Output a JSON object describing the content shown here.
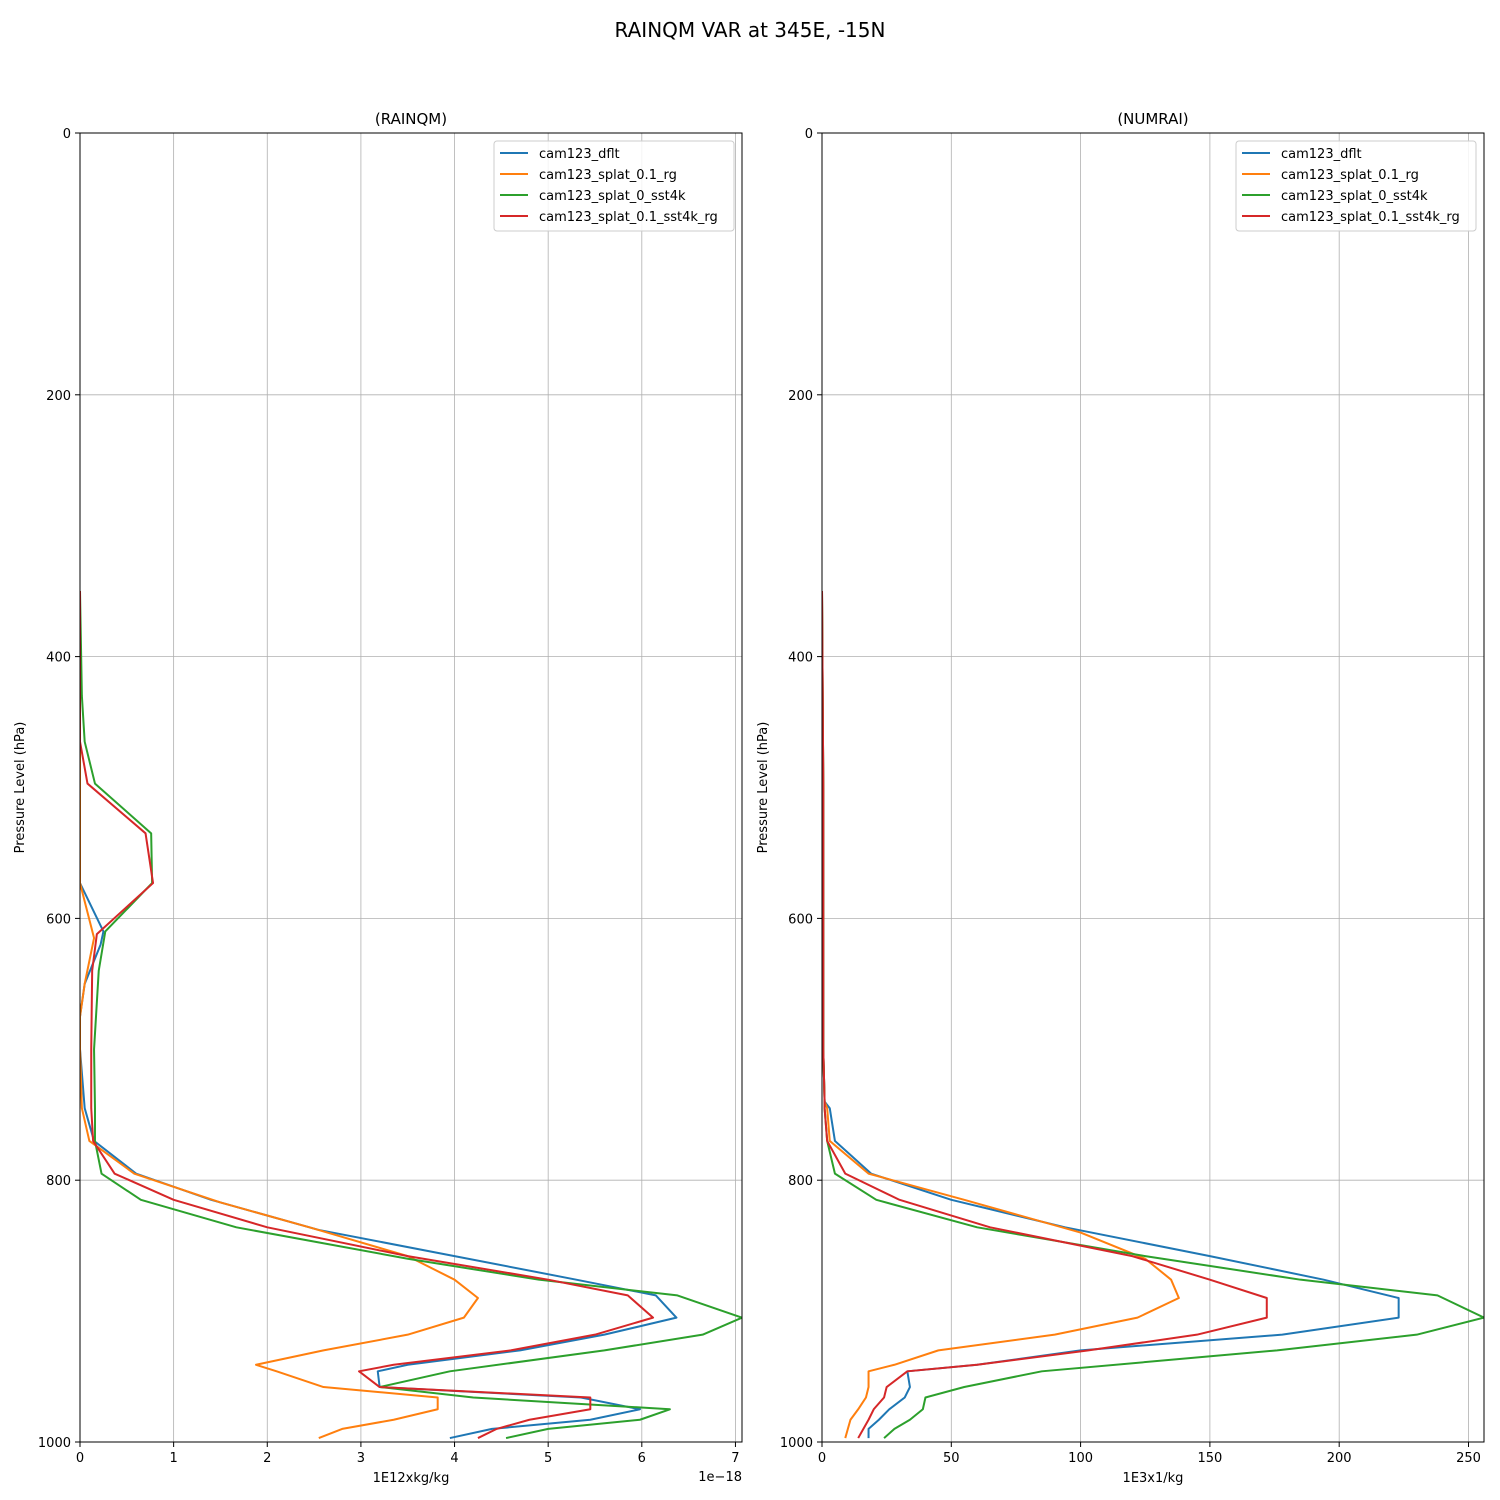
{
  "figure": {
    "suptitle": "RAINQM VAR at 345E, -15N"
  },
  "chart_data": [
    {
      "type": "line",
      "title": "(RAINQM)",
      "xlabel": "1E12xkg/kg",
      "ylabel": "Pressure Level (hPa)",
      "x_offset_text": "1e−18",
      "xlim": [
        0,
        7.07
      ],
      "ylim": [
        1000,
        0
      ],
      "xticks": [
        0,
        1,
        2,
        3,
        4,
        5,
        6,
        7
      ],
      "yticks": [
        0,
        200,
        400,
        600,
        800,
        1000
      ],
      "grid": true,
      "legend": "top-right",
      "series": [
        {
          "name": "cam123_dflt",
          "color": "#1f77b4",
          "points": [
            [
              0,
              350
            ],
            [
              0,
              535
            ],
            [
              0,
              573
            ],
            [
              0.25,
              610
            ],
            [
              0.22,
              620
            ],
            [
              0.05,
              650
            ],
            [
              0,
              675
            ],
            [
              0,
              700
            ],
            [
              0.05,
              745
            ],
            [
              0.15,
              770
            ],
            [
              0.6,
              795
            ],
            [
              1.4,
              815
            ],
            [
              2.55,
              838
            ],
            [
              4.0,
              858
            ],
            [
              5.3,
              876
            ],
            [
              6.15,
              888
            ],
            [
              6.37,
              905
            ],
            [
              5.6,
              918
            ],
            [
              4.7,
              930
            ],
            [
              3.5,
              941
            ],
            [
              3.18,
              946
            ],
            [
              3.2,
              958
            ],
            [
              5.35,
              966
            ],
            [
              5.98,
              975
            ],
            [
              5.45,
              983
            ],
            [
              4.4,
              990
            ],
            [
              3.95,
              997
            ]
          ]
        },
        {
          "name": "cam123_splat_0.1_rg",
          "color": "#ff7f0e",
          "points": [
            [
              0,
              350
            ],
            [
              0,
              535
            ],
            [
              0,
              573
            ],
            [
              0.15,
              615
            ],
            [
              0.05,
              650
            ],
            [
              0,
              675
            ],
            [
              0,
              700
            ],
            [
              0.02,
              745
            ],
            [
              0.1,
              770
            ],
            [
              0.58,
              795
            ],
            [
              1.5,
              817
            ],
            [
              2.45,
              836
            ],
            [
              3.5,
              858
            ],
            [
              4.0,
              876
            ],
            [
              4.25,
              890
            ],
            [
              4.1,
              905
            ],
            [
              3.5,
              918
            ],
            [
              2.6,
              930
            ],
            [
              1.88,
              941
            ],
            [
              2.1,
              946
            ],
            [
              2.6,
              958
            ],
            [
              3.82,
              966
            ],
            [
              3.82,
              975
            ],
            [
              3.35,
              983
            ],
            [
              2.8,
              990
            ],
            [
              2.55,
              997
            ]
          ]
        },
        {
          "name": "cam123_splat_0_sst4k",
          "color": "#2ca02c",
          "points": [
            [
              0,
              350
            ],
            [
              0.02,
              430
            ],
            [
              0.05,
              465
            ],
            [
              0.16,
              497
            ],
            [
              0.76,
              535
            ],
            [
              0.77,
              573
            ],
            [
              0.27,
              610
            ],
            [
              0.2,
              640
            ],
            [
              0.15,
              700
            ],
            [
              0.16,
              745
            ],
            [
              0.16,
              770
            ],
            [
              0.23,
              795
            ],
            [
              0.65,
              815
            ],
            [
              1.67,
              836
            ],
            [
              3.5,
              860
            ],
            [
              4.9,
              876
            ],
            [
              6.38,
              888
            ],
            [
              7.07,
              905
            ],
            [
              6.65,
              918
            ],
            [
              5.6,
              930
            ],
            [
              3.95,
              946
            ],
            [
              3.2,
              958
            ],
            [
              4.2,
              966
            ],
            [
              6.3,
              975
            ],
            [
              5.98,
              983
            ],
            [
              5.0,
              990
            ],
            [
              4.55,
              997
            ]
          ]
        },
        {
          "name": "cam123_splat_0.1_sst4k_rg",
          "color": "#d62728",
          "points": [
            [
              0,
              350
            ],
            [
              0,
              430
            ],
            [
              0,
              465
            ],
            [
              0.08,
              497
            ],
            [
              0.7,
              535
            ],
            [
              0.78,
              573
            ],
            [
              0.18,
              612
            ],
            [
              0.13,
              640
            ],
            [
              0.12,
              700
            ],
            [
              0.12,
              745
            ],
            [
              0.14,
              770
            ],
            [
              0.37,
              795
            ],
            [
              1.0,
              815
            ],
            [
              2.0,
              836
            ],
            [
              3.5,
              858
            ],
            [
              5.0,
              876
            ],
            [
              5.85,
              888
            ],
            [
              6.12,
              905
            ],
            [
              5.5,
              918
            ],
            [
              4.6,
              930
            ],
            [
              3.35,
              941
            ],
            [
              2.98,
              946
            ],
            [
              3.2,
              958
            ],
            [
              5.45,
              966
            ],
            [
              5.45,
              975
            ],
            [
              4.8,
              983
            ],
            [
              4.45,
              990
            ],
            [
              4.25,
              997
            ]
          ]
        }
      ]
    },
    {
      "type": "line",
      "title": "(NUMRAI)",
      "xlabel": "1E3x1/kg",
      "ylabel": "Pressure Level (hPa)",
      "xlim": [
        0,
        256
      ],
      "ylim": [
        1000,
        0
      ],
      "xticks": [
        0,
        50,
        100,
        150,
        200,
        250
      ],
      "yticks": [
        0,
        200,
        400,
        600,
        800,
        1000
      ],
      "grid": true,
      "legend": "top-right",
      "series": [
        {
          "name": "cam123_dflt",
          "color": "#1f77b4",
          "points": [
            [
              0,
              350
            ],
            [
              0.5,
              500
            ],
            [
              0.5,
              700
            ],
            [
              1,
              740
            ],
            [
              3,
              745
            ],
            [
              5,
              770
            ],
            [
              19,
              795
            ],
            [
              50,
              815
            ],
            [
              94,
              836
            ],
            [
              150,
              858
            ],
            [
              194,
              876
            ],
            [
              223,
              890
            ],
            [
              223,
              905
            ],
            [
              178,
              918
            ],
            [
              100,
              930
            ],
            [
              60,
              941
            ],
            [
              33,
              946
            ],
            [
              34,
              958
            ],
            [
              32,
              966
            ],
            [
              26,
              975
            ],
            [
              22,
              983
            ],
            [
              18,
              990
            ],
            [
              18,
              997
            ]
          ]
        },
        {
          "name": "cam123_splat_0.1_rg",
          "color": "#ff7f0e",
          "points": [
            [
              0,
              350
            ],
            [
              0.5,
              500
            ],
            [
              0.5,
              700
            ],
            [
              1,
              740
            ],
            [
              2,
              745
            ],
            [
              3,
              770
            ],
            [
              18,
              795
            ],
            [
              55,
              815
            ],
            [
              100,
              840
            ],
            [
              125,
              860
            ],
            [
              135,
              876
            ],
            [
              138,
              890
            ],
            [
              122,
              905
            ],
            [
              90,
              918
            ],
            [
              45,
              930
            ],
            [
              28,
              941
            ],
            [
              18,
              946
            ],
            [
              18,
              958
            ],
            [
              17,
              966
            ],
            [
              14,
              975
            ],
            [
              11,
              983
            ],
            [
              10,
              990
            ],
            [
              9,
              997
            ]
          ]
        },
        {
          "name": "cam123_splat_0_sst4k",
          "color": "#2ca02c",
          "points": [
            [
              0,
              350
            ],
            [
              0.5,
              500
            ],
            [
              0.5,
              700
            ],
            [
              1,
              740
            ],
            [
              1,
              745
            ],
            [
              2,
              770
            ],
            [
              5,
              795
            ],
            [
              21,
              815
            ],
            [
              60,
              836
            ],
            [
              125,
              858
            ],
            [
              185,
              876
            ],
            [
              238,
              888
            ],
            [
              256,
              905
            ],
            [
              230,
              918
            ],
            [
              176,
              930
            ],
            [
              85,
              946
            ],
            [
              55,
              958
            ],
            [
              40,
              966
            ],
            [
              39,
              975
            ],
            [
              34,
              983
            ],
            [
              28,
              990
            ],
            [
              24,
              997
            ]
          ]
        },
        {
          "name": "cam123_splat_0.1_sst4k_rg",
          "color": "#d62728",
          "points": [
            [
              0,
              350
            ],
            [
              0.5,
              500
            ],
            [
              0.5,
              700
            ],
            [
              1,
              740
            ],
            [
              1,
              745
            ],
            [
              2,
              770
            ],
            [
              9,
              795
            ],
            [
              30,
              815
            ],
            [
              65,
              836
            ],
            [
              120,
              858
            ],
            [
              150,
              876
            ],
            [
              172,
              890
            ],
            [
              172,
              905
            ],
            [
              145,
              918
            ],
            [
              103,
              930
            ],
            [
              60,
              941
            ],
            [
              33,
              946
            ],
            [
              25,
              958
            ],
            [
              24,
              966
            ],
            [
              20,
              975
            ],
            [
              18,
              983
            ],
            [
              16,
              990
            ],
            [
              14,
              997
            ]
          ]
        }
      ]
    }
  ]
}
